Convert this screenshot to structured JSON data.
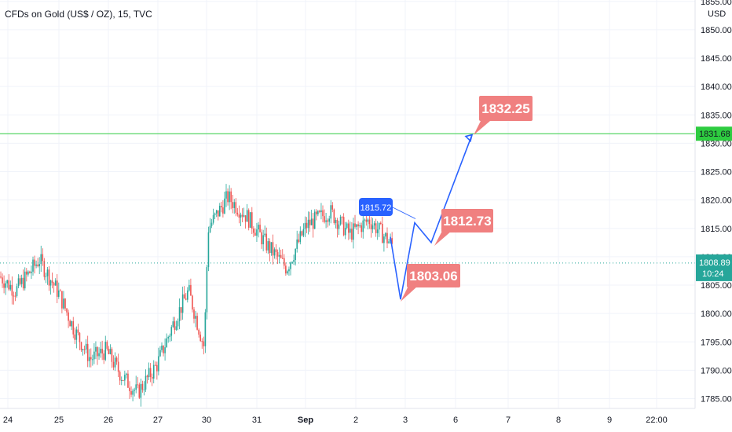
{
  "title": "CFDs on Gold (US$ / OZ), 15, TVC",
  "currency": "USD",
  "chart_data": {
    "type": "candlestick",
    "y_ticks": [
      1785,
      1790,
      1795,
      1800,
      1805,
      1810,
      1815,
      1820,
      1825,
      1830,
      1835,
      1840,
      1845,
      1850,
      1855
    ],
    "y_tick_labels": [
      "1785.00",
      "1790.00",
      "1795.00",
      "1800.00",
      "1805.00",
      "1810.00",
      "1815.00",
      "1820.00",
      "1825.00",
      "1830.00",
      "1835.00",
      "1840.00",
      "1845.00",
      "1850.00",
      "1855.00"
    ],
    "ylim": [
      1784,
      1856
    ],
    "x_labels": [
      "24",
      "25",
      "26",
      "27",
      "30",
      "31",
      "Sep",
      "2",
      "3",
      "6",
      "7",
      "8",
      "9",
      "22:00"
    ],
    "price_path": [
      [
        1806.5,
        0.0
      ],
      [
        1804.0,
        0.04
      ],
      [
        1809.5,
        0.1
      ],
      [
        1803.5,
        0.15
      ],
      [
        1797.0,
        0.19
      ],
      [
        1792.0,
        0.23
      ],
      [
        1793.5,
        0.27
      ],
      [
        1789.0,
        0.31
      ],
      [
        1786.0,
        0.35
      ],
      [
        1791.0,
        0.4
      ],
      [
        1798.0,
        0.44
      ],
      [
        1804.0,
        0.48
      ],
      [
        1794.0,
        0.52
      ],
      [
        1815.0,
        0.53
      ],
      [
        1820.5,
        0.58
      ],
      [
        1817.0,
        0.63
      ],
      [
        1812.0,
        0.68
      ],
      [
        1808.0,
        0.73
      ],
      [
        1815.5,
        0.78
      ],
      [
        1818.0,
        0.84
      ],
      [
        1814.0,
        0.89
      ],
      [
        1816.5,
        0.94
      ],
      [
        1812.0,
        1.0
      ]
    ],
    "horizontal_line": {
      "value": 1831.68,
      "label": "1831.68",
      "color": "#2ecc40"
    },
    "last_price": {
      "value": 1808.89,
      "label": "1808.89",
      "countdown": "10:24",
      "color": "#26a69a"
    },
    "projection": {
      "color": "#2962ff",
      "points": [
        [
          1,
          1813.5
        ],
        [
          2,
          1802.5
        ],
        [
          3,
          1816.0
        ],
        [
          4,
          1812.5
        ],
        [
          5,
          1831.5
        ]
      ]
    },
    "annotations": [
      {
        "text": "1832.25",
        "value": 1832.25,
        "color": "#f08080",
        "style": "callout"
      },
      {
        "text": "1812.73",
        "value": 1812.73,
        "color": "#f08080",
        "style": "callout"
      },
      {
        "text": "1803.06",
        "value": 1803.06,
        "color": "#f08080",
        "style": "callout"
      },
      {
        "text": "1815.72",
        "value": 1815.72,
        "color": "#2962ff",
        "style": "tag"
      }
    ],
    "colors": {
      "up": "#26a69a",
      "down": "#ef5350",
      "grid": "#f0f3fa",
      "axis_text": "#131722"
    },
    "grid": true,
    "legend": "none"
  }
}
